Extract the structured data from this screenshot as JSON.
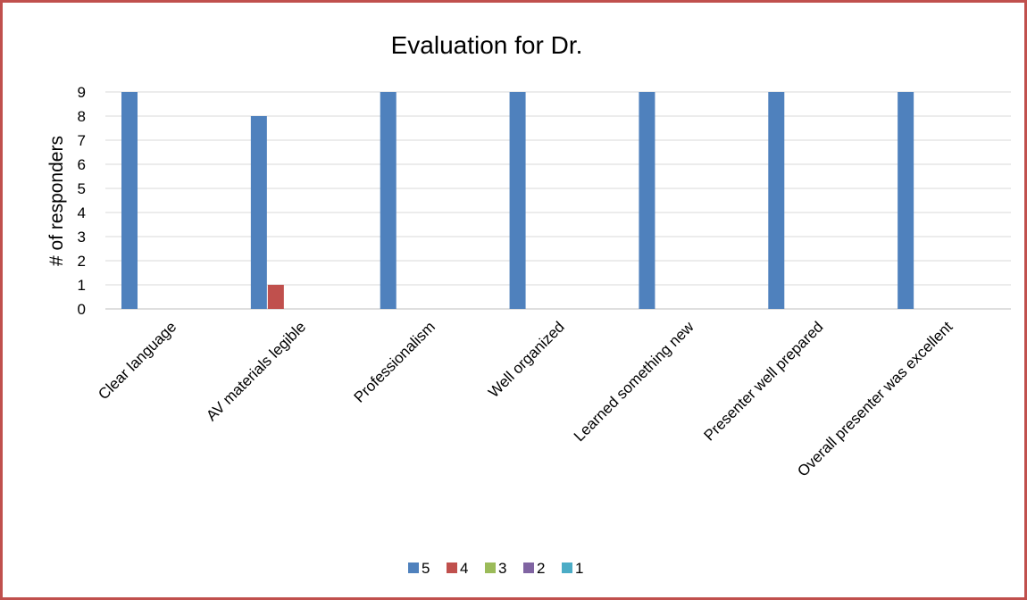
{
  "chart_data": {
    "type": "bar",
    "title": "Evaluation for Dr.",
    "xlabel": "",
    "ylabel": "# of responders",
    "ylim": [
      0,
      9
    ],
    "yticks": [
      0,
      1,
      2,
      3,
      4,
      5,
      6,
      7,
      8,
      9
    ],
    "grid": true,
    "legend_position": "bottom",
    "categories": [
      "Clear language",
      "AV materials legible",
      "Professionalism",
      "Well organized",
      "Learned something new",
      "Presenter well prepared",
      "Overall presenter was excellent"
    ],
    "series": [
      {
        "name": "5",
        "color": "#4f81bd",
        "values": [
          9,
          8,
          9,
          9,
          9,
          9,
          9
        ]
      },
      {
        "name": "4",
        "color": "#c0504d",
        "values": [
          0,
          1,
          0,
          0,
          0,
          0,
          0
        ]
      },
      {
        "name": "3",
        "color": "#9bbb59",
        "values": [
          0,
          0,
          0,
          0,
          0,
          0,
          0
        ]
      },
      {
        "name": "2",
        "color": "#8064a2",
        "values": [
          0,
          0,
          0,
          0,
          0,
          0,
          0
        ]
      },
      {
        "name": "1",
        "color": "#4bacc6",
        "values": [
          0,
          0,
          0,
          0,
          0,
          0,
          0
        ]
      }
    ]
  }
}
